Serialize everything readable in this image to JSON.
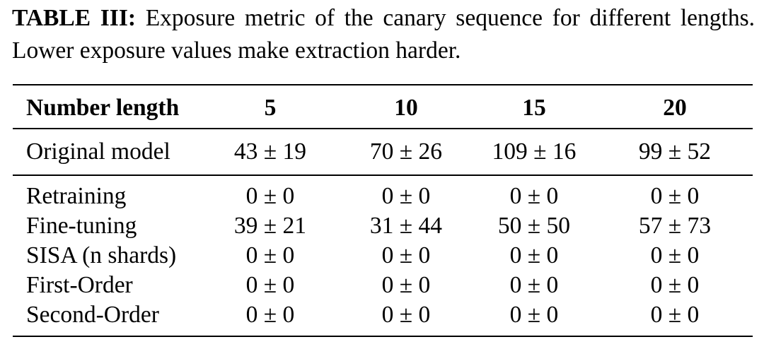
{
  "caption": {
    "label": "TABLE III:",
    "text": "Exposure metric of the canary sequence for different lengths. Lower exposure values make extraction harder."
  },
  "table": {
    "header": [
      "Number length",
      "5",
      "10",
      "15",
      "20"
    ],
    "groups": [
      {
        "rows": [
          {
            "label": "Original model",
            "values": [
              "43 ± 19",
              "70 ± 26",
              "109 ± 16",
              "99 ± 52"
            ]
          }
        ]
      },
      {
        "rows": [
          {
            "label": "Retraining",
            "values": [
              "0 ±  0",
              "0 ±  0",
              "0 ±  0",
              "0 ±  0"
            ]
          },
          {
            "label": "Fine-tuning",
            "values": [
              "39 ± 21",
              "31 ± 44",
              "50 ± 50",
              "57 ± 73"
            ]
          },
          {
            "label": "SISA (n shards)",
            "values": [
              "0 ±  0",
              "0 ±  0",
              "0 ±  0",
              "0 ±  0"
            ]
          },
          {
            "label": "First-Order",
            "values": [
              "0 ±  0",
              "0 ±  0",
              "0 ±  0",
              "0 ±  0"
            ]
          },
          {
            "label": "Second-Order",
            "values": [
              "0 ±  0",
              "0 ±  0",
              "0 ±  0",
              "0 ±  0"
            ]
          }
        ]
      }
    ]
  }
}
